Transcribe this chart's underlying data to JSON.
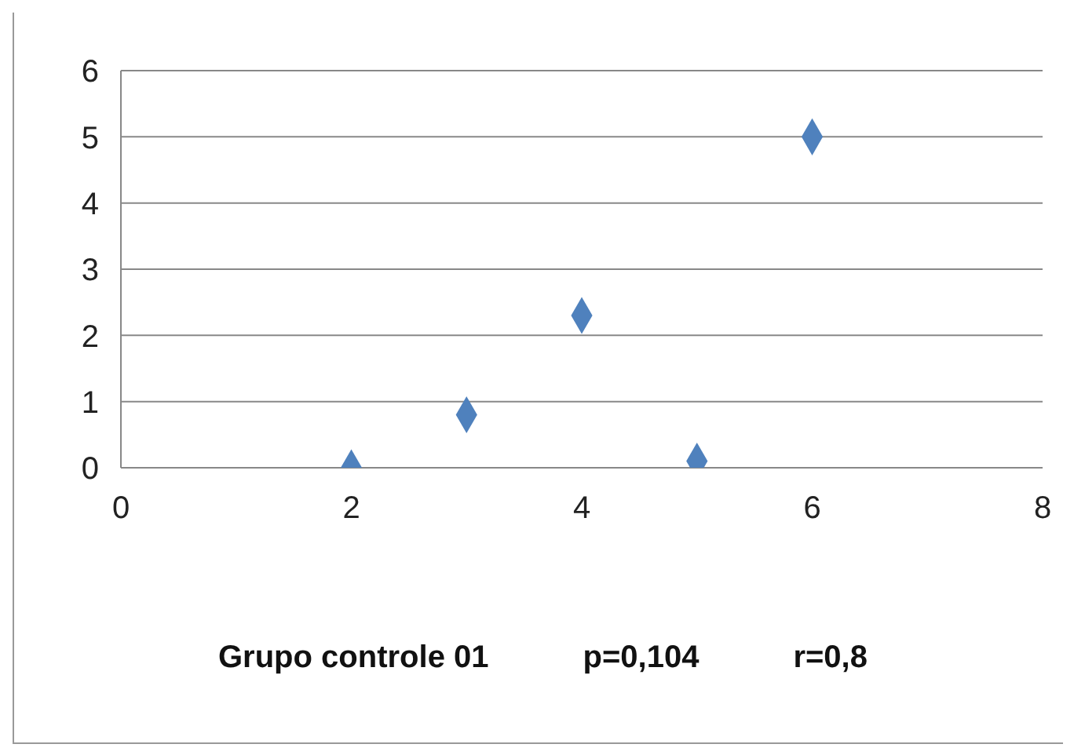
{
  "chart_data": {
    "type": "scatter",
    "xlabel": "Grupo controle 01",
    "annotations": [
      "p=0,104",
      "r=0,8"
    ],
    "x": [
      2,
      3,
      4,
      5,
      6
    ],
    "values": [
      0,
      0.8,
      2.3,
      0.1,
      5
    ],
    "color": "#4f81bd",
    "marker": "diamond",
    "xlim": [
      0,
      8
    ],
    "xticks": [
      0,
      2,
      4,
      6,
      8
    ],
    "ylim": [
      0,
      6
    ],
    "yticks": [
      0,
      1,
      2,
      3,
      4,
      5,
      6
    ],
    "grid": "y"
  }
}
